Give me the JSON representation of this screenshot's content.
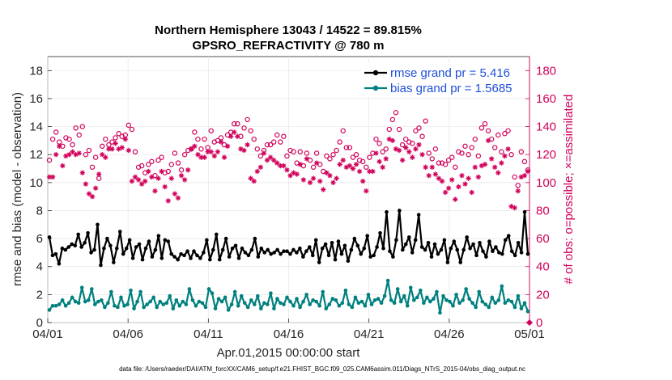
{
  "chart_data": {
    "type": "line",
    "title": "Northern Hemisphere 13043 / 14522 = 89.815%",
    "subtitle": "GPSRO_REFRACTIVITY @ 780 m",
    "xlabel": "Apr.01,2015 00:00:00 start",
    "ylabel": "rmse and bias (model - observation)",
    "ylabel_right": "# of obs: o=possible; ×=assimilated",
    "footnote": "data file: /Users/raeder/DAI/ATM_forcXX/CAM6_setup/f.e21.FHIST_BGC.f09_025.CAM6assim.011/Diags_NTrS_2015-04/obs_diag_output.nc",
    "x_ticks": [
      "04/01",
      "04/06",
      "04/11",
      "04/16",
      "04/21",
      "04/26",
      "05/01"
    ],
    "xlim_days": [
      0,
      30
    ],
    "ylim": [
      0,
      19
    ],
    "y_ticks": [
      0,
      2,
      4,
      6,
      8,
      10,
      12,
      14,
      16,
      18
    ],
    "ylim_right": [
      0,
      190
    ],
    "y_ticks_right": [
      0,
      20,
      40,
      60,
      80,
      100,
      120,
      140,
      160,
      180
    ],
    "colors": {
      "rmse": "#000000",
      "bias": "#00807f",
      "obs": "#d1005a",
      "legend_text": "#1f4fd8"
    },
    "legend_position": "top-right",
    "series": [
      {
        "name": "rmse grand pr = 5.416",
        "values": [
          6.1,
          4.8,
          4.9,
          4.2,
          5.3,
          5.2,
          5.4,
          5.6,
          5.5,
          6.3,
          5.4,
          5.7,
          6.4,
          5.0,
          5.2,
          7.0,
          4.1,
          5.3,
          6.0,
          5.5,
          4.3,
          5.3,
          6.5,
          4.9,
          5.3,
          5.9,
          4.6,
          5.4,
          5.6,
          4.5,
          5.3,
          5.8,
          4.7,
          5.2,
          6.2,
          4.6,
          5.9,
          5.8,
          4.9,
          4.7,
          4.5,
          4.9,
          4.8,
          5.1,
          4.6,
          5.1,
          4.8,
          4.6,
          5.0,
          5.9,
          4.5,
          5.2,
          6.3,
          4.5,
          5.2,
          6.0,
          4.7,
          5.3,
          5.5,
          4.6,
          5.3,
          5.0,
          4.8,
          5.2,
          6.0,
          4.7,
          5.3,
          5.0,
          5.2,
          4.9,
          5.0,
          5.2,
          4.9,
          5.1,
          5.1,
          4.9,
          5.2,
          5.0,
          5.3,
          4.7,
          5.1,
          5.4,
          4.8,
          5.9,
          4.3,
          5.3,
          5.6,
          4.8,
          5.7,
          4.5,
          5.8,
          4.9,
          5.5,
          4.4,
          5.2,
          6.0,
          5.5,
          4.9,
          5.3,
          6.2,
          4.7,
          4.8,
          5.4,
          6.4,
          5.3,
          7.9,
          5.1,
          4.7,
          5.9,
          8.0,
          5.2,
          5.6,
          6.1,
          5.0,
          5.9,
          7.7,
          5.4,
          5.2,
          5.7,
          4.7,
          5.6,
          4.9,
          5.2,
          5.9,
          4.3,
          5.3,
          5.8,
          5.2,
          4.3,
          5.2,
          6.1,
          5.3,
          5.6,
          4.8,
          5.7,
          5.1,
          4.7,
          5.8,
          5.1,
          5.4,
          5.0,
          4.9,
          5.9,
          6.2,
          5.1,
          4.8,
          5.7,
          5.0,
          7.9,
          4.9
        ],
        "color": "#000000"
      },
      {
        "name": "bias grand pr = 1.5685",
        "values": [
          0.9,
          1.2,
          1.2,
          1.3,
          1.6,
          1.2,
          1.4,
          1.8,
          1.5,
          1.4,
          2.5,
          1.5,
          1.6,
          2.4,
          1.3,
          1.5,
          1.6,
          1.1,
          1.4,
          2.2,
          1.2,
          1.1,
          1.8,
          1.2,
          1.3,
          2.3,
          1.0,
          1.5,
          2.2,
          1.1,
          1.3,
          1.5,
          1.8,
          1.1,
          1.5,
          1.3,
          1.4,
          1.9,
          1.0,
          1.6,
          1.2,
          1.5,
          1.3,
          2.4,
          1.6,
          1.2,
          1.5,
          1.4,
          1.1,
          2.4,
          2.1,
          1.0,
          1.7,
          1.5,
          1.8,
          0.9,
          1.3,
          2.2,
          1.2,
          1.9,
          1.4,
          1.1,
          1.6,
          1.3,
          1.9,
          1.0,
          1.4,
          1.3,
          2.1,
          1.0,
          1.7,
          1.4,
          1.3,
          1.8,
          1.5,
          1.2,
          1.7,
          1.1,
          1.5,
          2.0,
          1.3,
          1.6,
          1.5,
          1.2,
          2.2,
          1.0,
          1.3,
          1.7,
          1.6,
          1.2,
          1.4,
          2.3,
          1.3,
          1.1,
          1.8,
          1.4,
          1.5,
          1.2,
          2.0,
          1.3,
          1.6,
          1.7,
          1.4,
          1.9,
          3.0,
          1.6,
          1.4,
          2.4,
          1.5,
          1.9,
          1.2,
          2.5,
          1.6,
          1.8,
          2.3,
          1.4,
          1.8,
          1.5,
          1.7,
          2.2,
          0.7,
          1.9,
          1.6,
          1.5,
          1.2,
          2.0,
          1.4,
          1.6,
          2.4,
          1.7,
          1.4,
          1.1,
          2.2,
          1.5,
          1.3,
          1.1,
          1.8,
          1.4,
          1.6,
          2.6,
          1.4,
          1.6,
          1.5,
          1.1,
          1.9,
          1.0,
          1.4,
          0.8
        ],
        "color": "#00807f"
      },
      {
        "name": "possible",
        "axis": "right",
        "marker": "circle",
        "values": [
          116,
          131,
          136,
          129,
          126,
          132,
          131,
          127,
          139,
          134,
          140,
          120,
          123,
          111,
          118,
          103,
          126,
          131,
          127,
          129,
          132,
          135,
          133,
          134,
          141,
          138,
          122,
          111,
          112,
          107,
          113,
          115,
          105,
          116,
          118,
          107,
          108,
          113,
          121,
          114,
          109,
          120,
          123,
          124,
          136,
          131,
          124,
          131,
          125,
          137,
          129,
          130,
          132,
          127,
          134,
          136,
          142,
          142,
          133,
          139,
          145,
          137,
          131,
          124,
          119,
          123,
          127,
          127,
          129,
          134,
          129,
          133,
          119,
          123,
          122,
          114,
          122,
          112,
          121,
          116,
          111,
          121,
          113,
          108,
          119,
          117,
          120,
          123,
          129,
          137,
          125,
          125,
          118,
          120,
          116,
          115,
          111,
          118,
          121,
          131,
          128,
          122,
          124,
          138,
          145,
          150,
          138,
          127,
          131,
          129,
          128,
          137,
          139,
          133,
          144,
          121,
          117,
          124,
          114,
          114,
          113,
          116,
          118,
          111,
          122,
          121,
          126,
          120,
          125,
          131,
          119,
          139,
          142,
          137,
          131,
          125,
          134,
          122,
          135,
          137,
          120,
          104,
          98,
          122,
          115,
          109
        ],
        "color": "#d1005a"
      },
      {
        "name": "assimilated",
        "axis": "right",
        "marker": "asterisk",
        "values": [
          104,
          104,
          120,
          126,
          112,
          119,
          120,
          122,
          120,
          121,
          107,
          99,
          92,
          90,
          96,
          106,
          120,
          118,
          124,
          124,
          128,
          124,
          125,
          131,
          123,
          101,
          104,
          102,
          99,
          101,
          108,
          104,
          94,
          103,
          108,
          97,
          87,
          103,
          92,
          89,
          105,
          102,
          109,
          124,
          126,
          120,
          118,
          118,
          122,
          122,
          119,
          122,
          129,
          118,
          126,
          133,
          136,
          133,
          124,
          123,
          127,
          103,
          101,
          108,
          111,
          121,
          116,
          118,
          116,
          114,
          112,
          112,
          109,
          105,
          107,
          106,
          113,
          102,
          117,
          100,
          103,
          114,
          101,
          95,
          107,
          105,
          100,
          103,
          113,
          116,
          111,
          112,
          110,
          113,
          108,
          101,
          94,
          108,
          108,
          121,
          115,
          111,
          117,
          131,
          130,
          124,
          123,
          116,
          125,
          122,
          118,
          124,
          127,
          120,
          111,
          105,
          111,
          106,
          103,
          101,
          93,
          96,
          102,
          88,
          97,
          105,
          99,
          103,
          93,
          111,
          104,
          112,
          113,
          130,
          117,
          111,
          107,
          114,
          119,
          124,
          83,
          82,
          94,
          104,
          105,
          108
        ],
        "color": "#d1005a"
      }
    ]
  }
}
